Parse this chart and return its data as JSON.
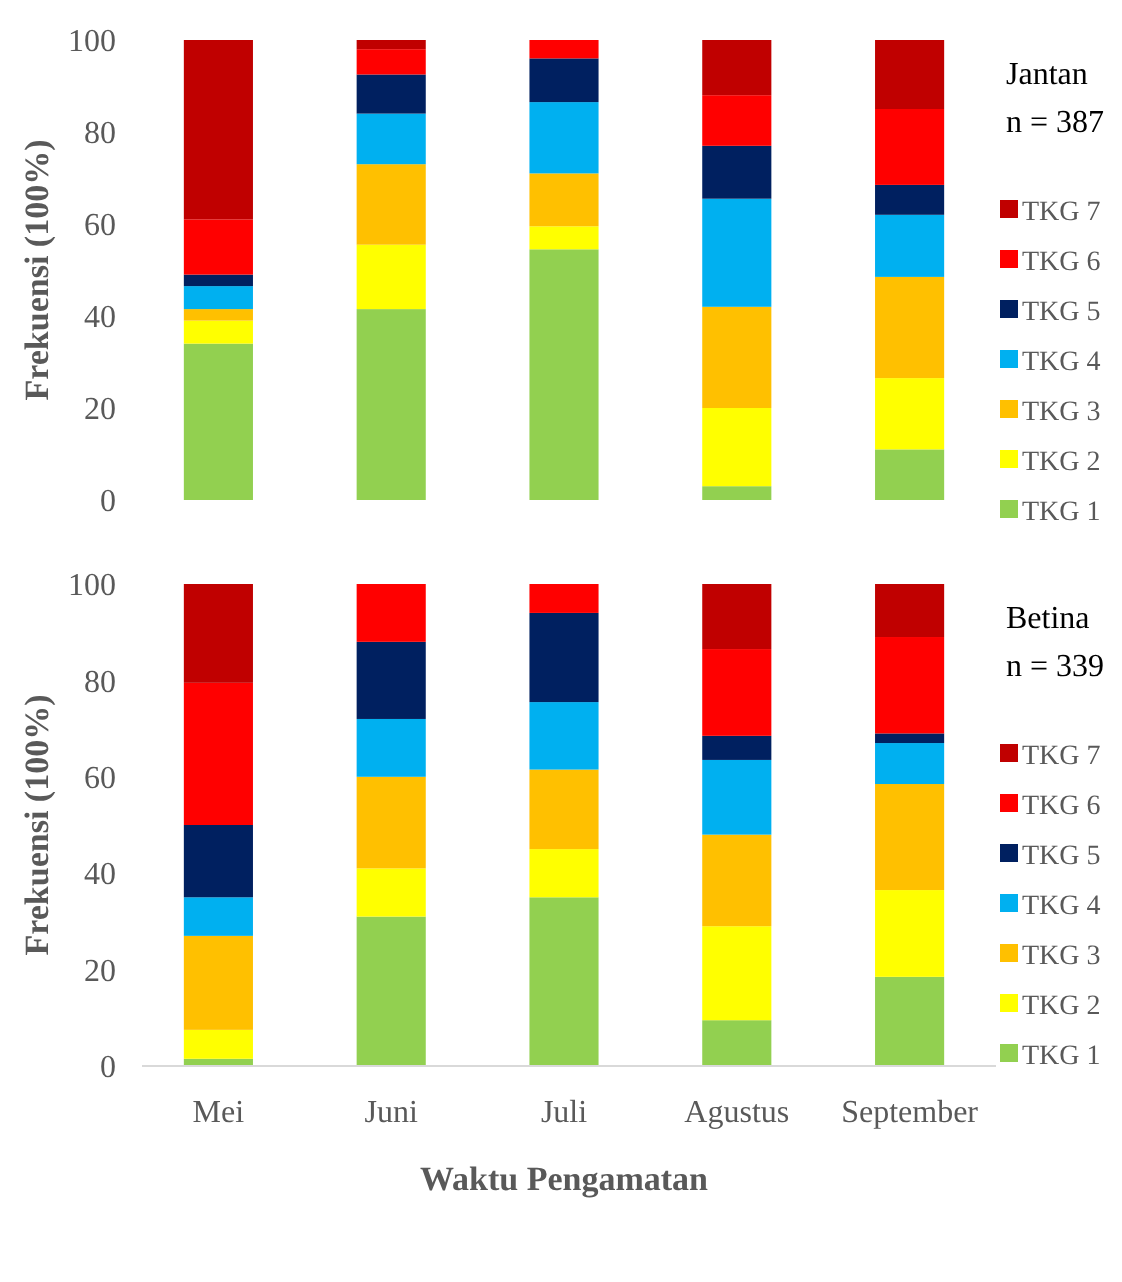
{
  "chart_data": [
    {
      "type": "bar",
      "stacked": true,
      "categories": [
        null,
        null,
        null,
        null,
        null
      ],
      "ylabel": "Frekuensi (100%)",
      "ylim": [
        0,
        100
      ],
      "yticks": [
        0,
        20,
        40,
        60,
        80,
        100
      ],
      "tick_labels": "y",
      "legend": "right",
      "annotations": [
        "Jantan",
        "n = 387"
      ],
      "series": [
        {
          "name": "TKG 1",
          "color": "#92d050",
          "values": [
            34,
            41.5,
            54.5,
            3,
            11
          ]
        },
        {
          "name": "TKG 2",
          "color": "#ffff00",
          "values": [
            5,
            14,
            5,
            17,
            15.5
          ]
        },
        {
          "name": "TKG 3",
          "color": "#ffc000",
          "values": [
            2.5,
            17.5,
            11.5,
            22,
            22
          ]
        },
        {
          "name": "TKG 4",
          "color": "#00b0f0",
          "values": [
            5,
            11,
            15.5,
            23.5,
            13.5
          ]
        },
        {
          "name": "TKG 5",
          "color": "#002060",
          "values": [
            2.5,
            8.5,
            9.5,
            11.5,
            6.5
          ]
        },
        {
          "name": "TKG 6",
          "color": "#ff0000",
          "values": [
            12,
            5.5,
            4,
            11,
            16.5
          ]
        },
        {
          "name": "TKG 7",
          "color": "#c00000",
          "values": [
            39,
            2,
            0,
            12,
            15
          ]
        }
      ]
    },
    {
      "type": "bar",
      "stacked": true,
      "categories": [
        "Mei",
        "Juni",
        "Juli",
        "Agustus",
        "September"
      ],
      "xlabel": "Waktu Pengamatan",
      "ylabel": "Frekuensi (100%)",
      "ylim": [
        0,
        100
      ],
      "yticks": [
        0,
        20,
        40,
        60,
        80,
        100
      ],
      "legend": "right",
      "annotations": [
        "Betina",
        "n = 339"
      ],
      "series": [
        {
          "name": "TKG 1",
          "color": "#92d050",
          "values": [
            1.5,
            31,
            35,
            9.5,
            18.5
          ]
        },
        {
          "name": "TKG 2",
          "color": "#ffff00",
          "values": [
            6,
            10,
            10,
            19.5,
            18
          ]
        },
        {
          "name": "TKG 3",
          "color": "#ffc000",
          "values": [
            19.5,
            19,
            16.5,
            19,
            22
          ]
        },
        {
          "name": "TKG 4",
          "color": "#00b0f0",
          "values": [
            8,
            12,
            14,
            15.5,
            8.5
          ]
        },
        {
          "name": "TKG 5",
          "color": "#002060",
          "values": [
            15,
            16,
            18.5,
            5,
            2
          ]
        },
        {
          "name": "TKG 6",
          "color": "#ff0000",
          "values": [
            29.5,
            12,
            6,
            18,
            20
          ]
        },
        {
          "name": "TKG 7",
          "color": "#c00000",
          "values": [
            20.5,
            0,
            0,
            13.5,
            11
          ]
        }
      ]
    }
  ]
}
